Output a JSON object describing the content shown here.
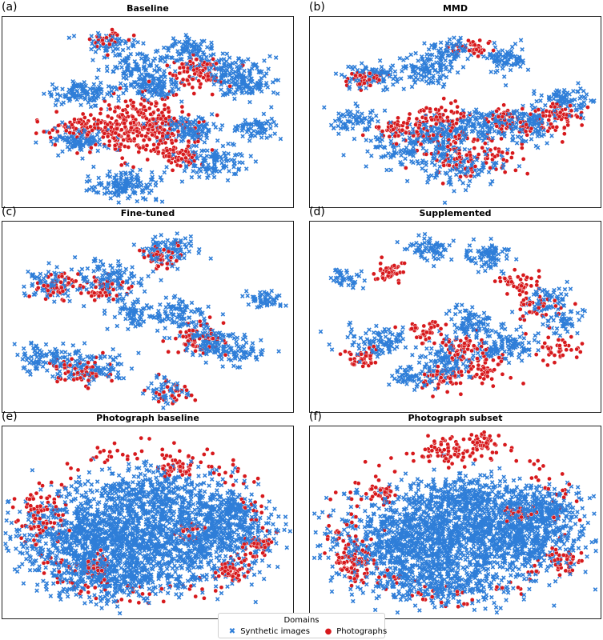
{
  "figure": {
    "legend": {
      "title": "Domains",
      "items": [
        {
          "label": "Synthetic images",
          "marker": "x",
          "color": "#2f7ed8"
        },
        {
          "label": "Photographs",
          "marker": "o",
          "color": "#d7191c"
        }
      ]
    }
  },
  "colors": {
    "synthetic": "#2f7ed8",
    "photo": "#d7191c",
    "edge": "#ffffff"
  },
  "chart_data": [
    {
      "type": "scatter",
      "letter": "(a)",
      "title": "Baseline",
      "xlabel": "",
      "ylabel": "",
      "axes_ticks": false,
      "grid": false,
      "series": [
        {
          "name": "Synthetic images",
          "clusters": [
            [
              27,
              40,
              7,
              4,
              120
            ],
            [
              64,
              59,
              7,
              4,
              130
            ],
            [
              52,
              37,
              6,
              4,
              110
            ],
            [
              64,
              18,
              6,
              4,
              90
            ],
            [
              78,
              28,
              8,
              5,
              120
            ],
            [
              83,
              36,
              6,
              4,
              100
            ],
            [
              72,
              76,
              7,
              5,
              120
            ],
            [
              40,
              88,
              6,
              5,
              90
            ],
            [
              47,
              26,
              8,
              5,
              110
            ],
            [
              26,
              65,
              7,
              5,
              110
            ],
            [
              88,
              58,
              5,
              4,
              70
            ],
            [
              38,
              14,
              5,
              3,
              60
            ],
            [
              46,
              88,
              6,
              5,
              60
            ]
          ]
        },
        {
          "name": "Photographs",
          "clusters": [
            [
              48,
              57,
              11,
              10,
              320
            ],
            [
              66,
              28,
              6,
              6,
              90
            ],
            [
              30,
              58,
              9,
              4,
              100
            ],
            [
              60,
              72,
              6,
              4,
              60
            ],
            [
              37,
              12,
              4,
              3,
              30
            ]
          ]
        }
      ]
    },
    {
      "type": "scatter",
      "letter": "(b)",
      "title": "MMD",
      "xlabel": "",
      "ylabel": "",
      "axes_ticks": false,
      "grid": false,
      "series": [
        {
          "name": "Synthetic images",
          "clusters": [
            [
              44,
              60,
              7,
              5,
              120
            ],
            [
              50,
              77,
              10,
              7,
              150
            ],
            [
              40,
              28,
              6,
              5,
              100
            ],
            [
              48,
              18,
              5,
              4,
              70
            ],
            [
              67,
              22,
              5,
              5,
              80
            ],
            [
              15,
              55,
              6,
              5,
              70
            ],
            [
              31,
              68,
              7,
              5,
              90
            ],
            [
              60,
              56,
              7,
              5,
              100
            ],
            [
              74,
              56,
              7,
              6,
              120
            ],
            [
              22,
              31,
              7,
              4,
              90
            ],
            [
              88,
              44,
              6,
              5,
              90
            ]
          ]
        },
        {
          "name": "Photographs",
          "clusters": [
            [
              56,
              72,
              10,
              7,
              110
            ],
            [
              44,
              55,
              7,
              6,
              80
            ],
            [
              68,
              55,
              6,
              5,
              60
            ],
            [
              85,
              52,
              6,
              5,
              70
            ],
            [
              31,
              60,
              6,
              4,
              60
            ],
            [
              57,
              16,
              5,
              3,
              40
            ],
            [
              20,
              33,
              5,
              3,
              40
            ]
          ]
        }
      ]
    },
    {
      "type": "scatter",
      "letter": "(c)",
      "title": "Fine-tuned",
      "xlabel": "",
      "ylabel": "",
      "axes_ticks": false,
      "grid": false,
      "series": [
        {
          "name": "Synthetic images",
          "clusters": [
            [
              57,
              15,
              6,
              5,
              100
            ],
            [
              37,
              31,
              7,
              6,
              120
            ],
            [
              15,
              72,
              7,
              5,
              100
            ],
            [
              31,
              77,
              7,
              5,
              110
            ],
            [
              61,
              48,
              6,
              5,
              90
            ],
            [
              70,
              63,
              6,
              6,
              100
            ],
            [
              81,
              68,
              6,
              5,
              80
            ],
            [
              90,
              41,
              4,
              3,
              50
            ],
            [
              57,
              90,
              4,
              5,
              50
            ],
            [
              16,
              33,
              5,
              5,
              80
            ],
            [
              45,
              48,
              5,
              4,
              70
            ]
          ]
        },
        {
          "name": "Photographs",
          "clusters": [
            [
              20,
              33,
              5,
              5,
              60
            ],
            [
              27,
              78,
              6,
              5,
              60
            ],
            [
              55,
              18,
              5,
              4,
              40
            ],
            [
              67,
              62,
              6,
              5,
              60
            ],
            [
              58,
              90,
              5,
              4,
              30
            ],
            [
              35,
              35,
              5,
              4,
              50
            ]
          ]
        }
      ]
    },
    {
      "type": "scatter",
      "letter": "(d)",
      "title": "Supplemented",
      "xlabel": "",
      "ylabel": "",
      "axes_ticks": false,
      "grid": false,
      "series": [
        {
          "name": "Synthetic images",
          "clusters": [
            [
              41,
              14,
              5,
              4,
              70
            ],
            [
              55,
              55,
              6,
              6,
              100
            ],
            [
              47,
              74,
              6,
              6,
              100
            ],
            [
              61,
              18,
              5,
              5,
              80
            ],
            [
              82,
              41,
              5,
              5,
              70
            ],
            [
              87,
              52,
              4,
              4,
              50
            ],
            [
              71,
              65,
              6,
              5,
              70
            ],
            [
              23,
              63,
              7,
              5,
              100
            ],
            [
              12,
              30,
              4,
              3,
              40
            ],
            [
              35,
              82,
              5,
              4,
              60
            ],
            [
              61,
              68,
              4,
              4,
              40
            ]
          ]
        },
        {
          "name": "Photographs",
          "clusters": [
            [
              27,
              27,
              4,
              4,
              40
            ],
            [
              40,
              57,
              5,
              4,
              40
            ],
            [
              53,
              66,
              6,
              5,
              60
            ],
            [
              46,
              82,
              5,
              4,
              50
            ],
            [
              62,
              77,
              5,
              5,
              50
            ],
            [
              71,
              32,
              4,
              4,
              40
            ],
            [
              85,
              67,
              5,
              4,
              40
            ],
            [
              18,
              72,
              4,
              3,
              40
            ],
            [
              79,
              44,
              5,
              5,
              40
            ]
          ]
        }
      ]
    },
    {
      "type": "scatter",
      "letter": "(e)",
      "title": "Photograph baseline",
      "xlabel": "",
      "ylabel": "",
      "axes_ticks": false,
      "grid": false,
      "series": [
        {
          "name": "Synthetic images",
          "clusters": [
            [
              45,
              55,
              24,
              16,
              1100
            ],
            [
              30,
              62,
              14,
              12,
              400
            ],
            [
              72,
              58,
              13,
              12,
              400
            ],
            [
              52,
              35,
              14,
              9,
              300
            ],
            [
              40,
              80,
              16,
              7,
              300
            ],
            [
              80,
              43,
              7,
              6,
              120
            ]
          ]
        },
        {
          "name": "Photographs",
          "clusters": [
            [
              14,
              48,
              5,
              6,
              60
            ],
            [
              60,
              22,
              4,
              3,
              40
            ],
            [
              88,
              62,
              3,
              3,
              40
            ],
            [
              80,
              76,
              3,
              3,
              40
            ],
            [
              33,
              72,
              4,
              3,
              40
            ],
            [
              65,
              55,
              4,
              3,
              30
            ]
          ]
        },
        {
          "name": "Photographs (scattered)",
          "uniform_ring": true,
          "count": 180
        }
      ]
    },
    {
      "type": "scatter",
      "letter": "(f)",
      "title": "Photograph subset",
      "xlabel": "",
      "ylabel": "",
      "axes_ticks": false,
      "grid": false,
      "series": [
        {
          "name": "Synthetic images",
          "clusters": [
            [
              50,
              57,
              26,
              15,
              1100
            ],
            [
              32,
              62,
              14,
              12,
              400
            ],
            [
              75,
              55,
              12,
              13,
              400
            ],
            [
              52,
              38,
              14,
              8,
              300
            ],
            [
              45,
              82,
              16,
              7,
              300
            ],
            [
              82,
              42,
              7,
              6,
              120
            ]
          ]
        },
        {
          "name": "Photographs",
          "clusters": [
            [
              15,
              70,
              5,
              8,
              90
            ],
            [
              48,
              14,
              7,
              4,
              60
            ],
            [
              60,
              8,
              3,
              3,
              40
            ],
            [
              25,
              35,
              3,
              4,
              30
            ],
            [
              72,
              45,
              4,
              3,
              40
            ],
            [
              88,
              70,
              4,
              4,
              40
            ]
          ]
        },
        {
          "name": "Photographs (scattered)",
          "uniform_ring": true,
          "count": 140
        }
      ]
    }
  ]
}
